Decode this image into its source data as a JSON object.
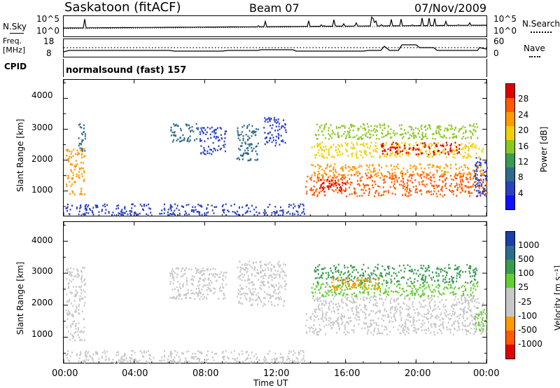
{
  "header": {
    "station": "Saskatoon (fitACF)",
    "beam": "Beam 07",
    "date": "07/Nov/2009"
  },
  "nsky_panel": {
    "left_label": "N.Sky",
    "right_label": "N.Search",
    "left_ticks": [
      "10^5",
      "10^0"
    ],
    "right_ticks": [
      "10^5",
      "10^0"
    ]
  },
  "freq_panel": {
    "left_label_line1": "Freq.",
    "left_label_line2": "[MHz]",
    "right_label": "Nave",
    "left_ticks": [
      "18",
      "8"
    ],
    "right_ticks": [
      "60",
      "0"
    ]
  },
  "cpid_panel": {
    "left_label": "CPID",
    "mode_text": "normalsound (fast) 157"
  },
  "time_axis": {
    "label": "Time UT",
    "ticks": [
      "00:00",
      "04:00",
      "08:00",
      "12:00",
      "16:00",
      "20:00",
      "00:00"
    ]
  },
  "chart_data": [
    {
      "type": "heatmap",
      "name": "power",
      "ylabel": "Slant Range [km]",
      "yticks": [
        1000,
        2000,
        3000,
        4000
      ],
      "ylim": [
        200,
        4600
      ],
      "xlim_hours": [
        0,
        24
      ],
      "colorbar_label": "Power [dB]",
      "colorbar_ticks": [
        "28",
        "24",
        "20",
        "16",
        "12",
        "8",
        "4"
      ],
      "colorbar_colors": [
        "#e00000",
        "#ff5a00",
        "#ff9a00",
        "#f0d000",
        "#8ac820",
        "#3a9a50",
        "#2f6c8c",
        "#2a40c0",
        "#1010ff"
      ],
      "regions": [
        {
          "t0": 0.0,
          "t1": 13.7,
          "r0": 230,
          "r1": 600,
          "color": "#2a40c0"
        },
        {
          "t0": 0.1,
          "t1": 1.2,
          "r0": 900,
          "r1": 2400,
          "color": "#ff9a00"
        },
        {
          "t0": 0.8,
          "t1": 1.2,
          "r0": 2200,
          "r1": 3200,
          "color": "#2f6c8c"
        },
        {
          "t0": 6.0,
          "t1": 7.6,
          "r0": 2600,
          "r1": 3200,
          "color": "#2f6c8c"
        },
        {
          "t0": 7.7,
          "t1": 9.2,
          "r0": 2200,
          "r1": 3100,
          "color": "#2a40c0"
        },
        {
          "t0": 9.8,
          "t1": 11.0,
          "r0": 2000,
          "r1": 3200,
          "color": "#2f6c8c"
        },
        {
          "t0": 11.3,
          "t1": 12.6,
          "r0": 2500,
          "r1": 3400,
          "color": "#2a40c0"
        },
        {
          "t0": 13.7,
          "t1": 24.0,
          "r0": 850,
          "r1": 1600,
          "color": "#ff5a00"
        },
        {
          "t0": 14.0,
          "t1": 23.8,
          "r0": 1500,
          "r1": 1900,
          "color": "#ff9a00"
        },
        {
          "t0": 14.0,
          "t1": 23.8,
          "r0": 2100,
          "r1": 2600,
          "color": "#f0d000"
        },
        {
          "t0": 14.2,
          "t1": 23.5,
          "r0": 2700,
          "r1": 3200,
          "color": "#8ac820"
        },
        {
          "t0": 18.0,
          "t1": 22.5,
          "r0": 2200,
          "r1": 2600,
          "color": "#e00000"
        },
        {
          "t0": 14.5,
          "t1": 16.0,
          "r0": 1000,
          "r1": 1400,
          "color": "#e00000"
        },
        {
          "t0": 23.3,
          "t1": 24.0,
          "r0": 800,
          "r1": 2200,
          "color": "#2a40c0"
        }
      ]
    },
    {
      "type": "heatmap",
      "name": "velocity",
      "ylabel": "Slant Range [km]",
      "yticks": [
        1000,
        2000,
        3000,
        4000
      ],
      "ylim": [
        200,
        4600
      ],
      "xlim_hours": [
        0,
        24
      ],
      "colorbar_label": "Velocity [m s⁻¹]",
      "colorbar_ticks": [
        "1000",
        "500",
        "100",
        "25",
        "-25",
        "-100",
        "-500",
        "-1000"
      ],
      "colorbar_colors": [
        "#1a3fa8",
        "#2f6c8c",
        "#3a9a50",
        "#66cc33",
        "#c8c8c8",
        "#c8c8c8",
        "#ff9a00",
        "#ff5a00",
        "#e00000"
      ],
      "regions": [
        {
          "t0": 0.0,
          "t1": 13.7,
          "r0": 230,
          "r1": 600,
          "color": "#c8c8c8"
        },
        {
          "t0": 0.1,
          "t1": 1.2,
          "r0": 900,
          "r1": 3200,
          "color": "#c8c8c8"
        },
        {
          "t0": 6.0,
          "t1": 9.2,
          "r0": 2200,
          "r1": 3200,
          "color": "#c8c8c8"
        },
        {
          "t0": 9.8,
          "t1": 12.6,
          "r0": 2000,
          "r1": 3400,
          "color": "#c8c8c8"
        },
        {
          "t0": 13.7,
          "t1": 23.8,
          "r0": 1100,
          "r1": 1800,
          "color": "#c8c8c8"
        },
        {
          "t0": 14.0,
          "t1": 23.8,
          "r0": 1800,
          "r1": 2300,
          "color": "#c8c8c8"
        },
        {
          "t0": 14.0,
          "t1": 23.5,
          "r0": 2300,
          "r1": 2700,
          "color": "#66cc33"
        },
        {
          "t0": 14.2,
          "t1": 23.5,
          "r0": 2700,
          "r1": 3300,
          "color": "#3a9a50"
        },
        {
          "t0": 15.0,
          "t1": 18.0,
          "r0": 2500,
          "r1": 2900,
          "color": "#ff9a00"
        },
        {
          "t0": 23.3,
          "t1": 24.0,
          "r0": 1200,
          "r1": 2000,
          "color": "#66cc33"
        }
      ]
    }
  ]
}
